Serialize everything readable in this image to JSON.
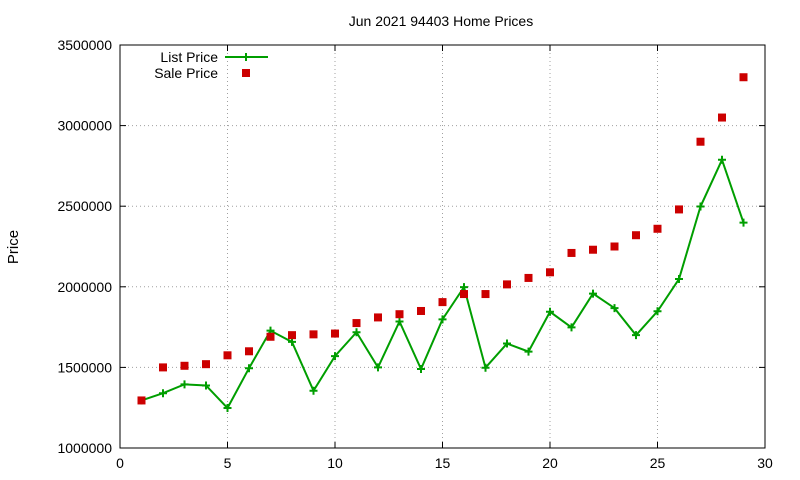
{
  "chart_data": {
    "type": "line",
    "title": "Jun 2021 94403 Home Prices",
    "xlabel": "",
    "ylabel": "Price",
    "xlim": [
      0,
      30
    ],
    "ylim": [
      1000000,
      3500000
    ],
    "xticks": [
      0,
      5,
      10,
      15,
      20,
      25,
      30
    ],
    "yticks": [
      1000000,
      1500000,
      2000000,
      2500000,
      3000000,
      3500000
    ],
    "grid": true,
    "legend_position": "top-left",
    "x": [
      1,
      2,
      3,
      4,
      5,
      6,
      7,
      8,
      9,
      10,
      11,
      12,
      13,
      14,
      15,
      16,
      17,
      18,
      19,
      20,
      21,
      22,
      23,
      24,
      25,
      26,
      27,
      28,
      29
    ],
    "series": [
      {
        "name": "List Price",
        "style": "line-points",
        "color": "#009e00",
        "values": [
          1295000,
          1340000,
          1395000,
          1388000,
          1248000,
          1495000,
          1728000,
          1658000,
          1355000,
          1570000,
          1718000,
          1500000,
          1785000,
          1490000,
          1798000,
          1998000,
          1498000,
          1648000,
          1598000,
          1845000,
          1748000,
          1958000,
          1868000,
          1700000,
          1848000,
          2048000,
          2498000,
          2788000,
          2398000
        ]
      },
      {
        "name": "Sale Price",
        "style": "points",
        "color": "#cc0000",
        "values": [
          1295000,
          1500000,
          1510000,
          1520000,
          1575000,
          1600000,
          1690000,
          1700000,
          1705000,
          1710000,
          1775000,
          1810000,
          1830000,
          1850000,
          1905000,
          1955000,
          1955000,
          2015000,
          2055000,
          2090000,
          2210000,
          2230000,
          2250000,
          2320000,
          2360000,
          2480000,
          2900000,
          3050000,
          3300000
        ]
      }
    ]
  }
}
